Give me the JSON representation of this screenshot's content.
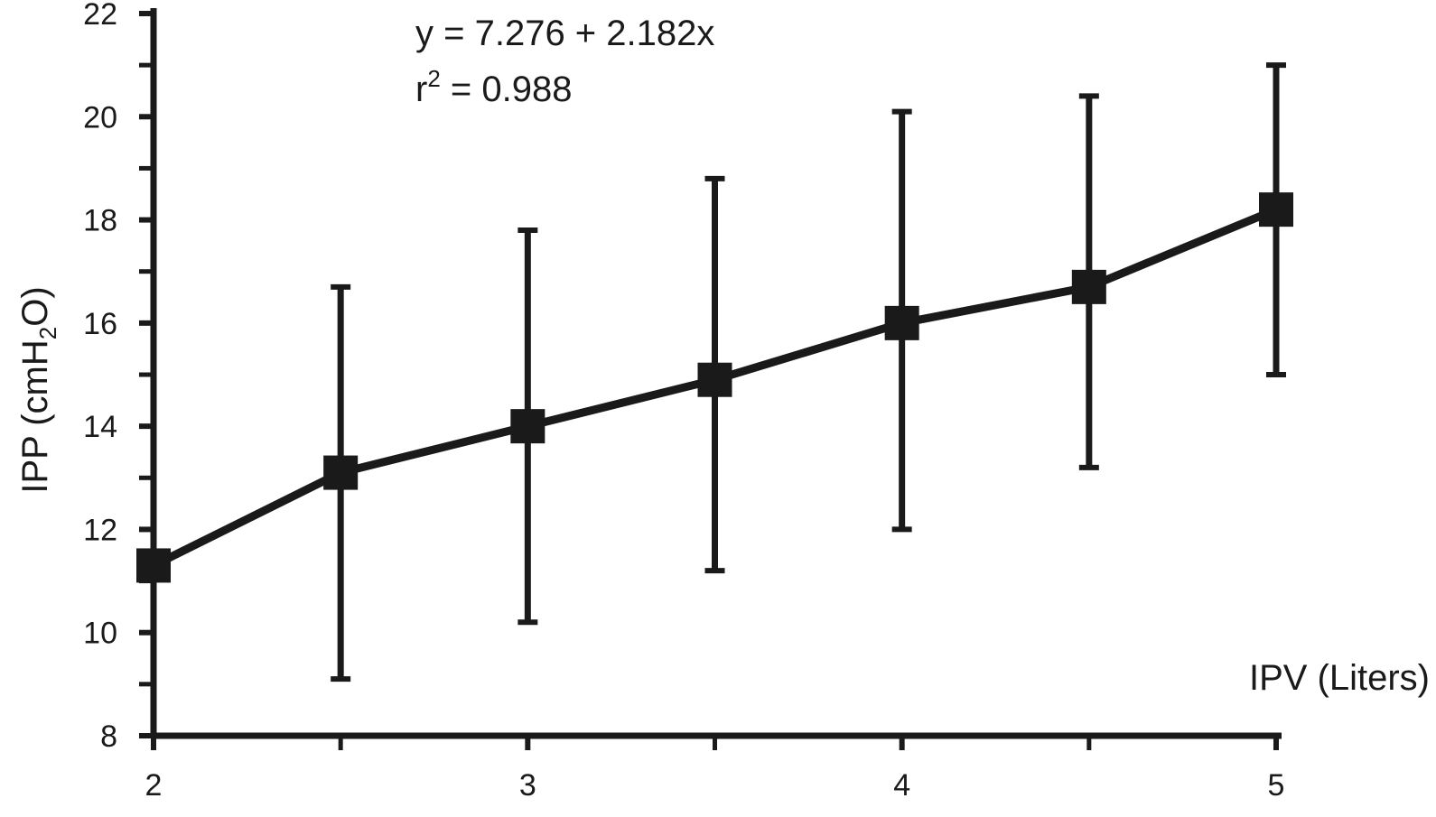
{
  "chart_data": {
    "type": "line",
    "xlabel": "IPV (Liters)",
    "ylabel_main": "IPP (cmH",
    "ylabel_sub": "2",
    "ylabel_end": "O)",
    "xlim": [
      2,
      5
    ],
    "ylim": [
      8,
      22
    ],
    "xticks": [
      2,
      3,
      4,
      5
    ],
    "xminor": [
      2.5,
      3.5,
      4.5
    ],
    "yticks": [
      8,
      10,
      12,
      14,
      16,
      18,
      20,
      22
    ],
    "yminor": [
      9,
      11,
      13,
      15,
      17,
      19,
      21
    ],
    "grid": false,
    "series": [
      {
        "x": [
          2,
          2.5,
          3,
          3.5,
          4,
          4.5,
          5
        ],
        "y": [
          11.3,
          13.1,
          14.0,
          14.9,
          16.0,
          16.7,
          18.2
        ],
        "err_low": [
          11.3,
          9.1,
          10.2,
          11.2,
          12.0,
          13.2,
          15.0
        ],
        "err_high": [
          11.3,
          16.7,
          17.8,
          18.8,
          20.1,
          20.4,
          21.0
        ],
        "color": "#1a1a1a",
        "marker": "square"
      }
    ],
    "annotations": {
      "equation": "y = 7.276 + 2.182x",
      "r2_label": "r",
      "r2_sup": "2",
      "r2_value": " = 0.988"
    }
  }
}
